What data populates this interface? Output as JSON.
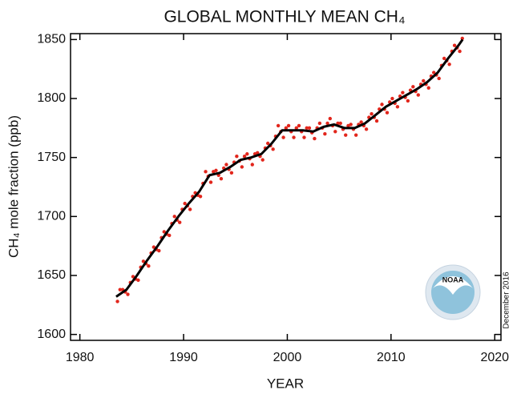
{
  "chart_data": {
    "type": "line",
    "title": "GLOBAL MONTHLY MEAN CH₄",
    "x_label": "YEAR",
    "y_label": "CH₄ mole fraction (ppb)",
    "annotation": "December 2016",
    "logo_text": "NOAA",
    "xlim": [
      1979.1,
      2020.6
    ],
    "xticks": [
      1980,
      1990,
      2000,
      2010,
      2020
    ],
    "ylim": [
      1595,
      1855
    ],
    "yticks": [
      1600,
      1650,
      1700,
      1750,
      1800,
      1850
    ],
    "grid": false,
    "series": [
      {
        "style": "points",
        "color": "#e2261c",
        "x": [
          1983.625,
          1983.875,
          1984.125,
          1984.375,
          1984.625,
          1984.875,
          1985.125,
          1985.375,
          1985.625,
          1985.875,
          1986.125,
          1986.375,
          1986.625,
          1986.875,
          1987.125,
          1987.375,
          1987.625,
          1987.875,
          1988.125,
          1988.375,
          1988.625,
          1988.875,
          1989.125,
          1989.375,
          1989.625,
          1989.875,
          1990.125,
          1990.375,
          1990.625,
          1990.875,
          1991.125,
          1991.375,
          1991.625,
          1991.875,
          1992.125,
          1992.375,
          1992.625,
          1992.875,
          1993.125,
          1993.375,
          1993.625,
          1993.875,
          1994.125,
          1994.375,
          1994.625,
          1994.875,
          1995.125,
          1995.375,
          1995.625,
          1995.875,
          1996.125,
          1996.375,
          1996.625,
          1996.875,
          1997.125,
          1997.375,
          1997.625,
          1997.875,
          1998.125,
          1998.375,
          1998.625,
          1998.875,
          1999.125,
          1999.375,
          1999.625,
          1999.875,
          2000.125,
          2000.375,
          2000.625,
          2000.875,
          2001.125,
          2001.375,
          2001.625,
          2001.875,
          2002.125,
          2002.375,
          2002.625,
          2002.875,
          2003.125,
          2003.375,
          2003.625,
          2003.875,
          2004.125,
          2004.375,
          2004.625,
          2004.875,
          2005.125,
          2005.375,
          2005.625,
          2005.875,
          2006.125,
          2006.375,
          2006.625,
          2006.875,
          2007.125,
          2007.375,
          2007.625,
          2007.875,
          2008.125,
          2008.375,
          2008.625,
          2008.875,
          2009.125,
          2009.375,
          2009.625,
          2009.875,
          2010.125,
          2010.375,
          2010.625,
          2010.875,
          2011.125,
          2011.375,
          2011.625,
          2011.875,
          2012.125,
          2012.375,
          2012.625,
          2012.875,
          2013.125,
          2013.375,
          2013.625,
          2013.875,
          2014.125,
          2014.375,
          2014.625,
          2014.875,
          2015.125,
          2015.375,
          2015.625,
          2015.875,
          2016.125,
          2016.375,
          2016.625,
          2016.875
        ],
        "values": [
          1628,
          1638,
          1638,
          1636,
          1634,
          1644,
          1649,
          1647,
          1646,
          1657,
          1662,
          1660,
          1658,
          1669,
          1674,
          1672,
          1671,
          1682,
          1687,
          1685,
          1684,
          1694,
          1700,
          1697,
          1695,
          1706,
          1711,
          1709,
          1706,
          1717,
          1720,
          1718,
          1717,
          1728,
          1738,
          1734,
          1729,
          1738,
          1739,
          1735,
          1732,
          1741,
          1744,
          1740,
          1737,
          1746,
          1751,
          1747,
          1742,
          1751,
          1753,
          1749,
          1744,
          1753,
          1754,
          1751,
          1748,
          1758,
          1762,
          1760,
          1757,
          1768,
          1777,
          1772,
          1767,
          1775,
          1777,
          1772,
          1767,
          1775,
          1777,
          1772,
          1767,
          1775,
          1775,
          1771,
          1766,
          1775,
          1779,
          1775,
          1770,
          1779,
          1783,
          1777,
          1772,
          1779,
          1779,
          1774,
          1769,
          1777,
          1778,
          1774,
          1769,
          1778,
          1780,
          1777,
          1774,
          1784,
          1787,
          1784,
          1781,
          1791,
          1795,
          1791,
          1788,
          1797,
          1800,
          1796,
          1793,
          1802,
          1805,
          1801,
          1798,
          1807,
          1810,
          1806,
          1803,
          1812,
          1815,
          1812,
          1809,
          1819,
          1822,
          1820,
          1817,
          1828,
          1834,
          1832,
          1829,
          1840,
          1845,
          1843,
          1840,
          1851
        ]
      },
      {
        "style": "line",
        "color": "#000000",
        "x": [
          1983.5,
          1984.5,
          1985.5,
          1986.5,
          1987.5,
          1988.5,
          1989.5,
          1990.5,
          1991.5,
          1992.5,
          1993.5,
          1994.5,
          1995.5,
          1996.5,
          1997.5,
          1998.5,
          1999.5,
          2000.5,
          2001.5,
          2002.5,
          2003.5,
          2004.5,
          2005.5,
          2006.5,
          2007.5,
          2008.5,
          2009.5,
          2010.5,
          2011.5,
          2012.5,
          2013.5,
          2014.5,
          2015.5,
          2016.5,
          2016.9
        ],
        "values": [
          1632,
          1638,
          1650,
          1663,
          1675,
          1688,
          1700,
          1711,
          1721,
          1735,
          1737,
          1742,
          1748,
          1750,
          1753,
          1762,
          1773,
          1773,
          1773,
          1772,
          1776,
          1778,
          1775,
          1775,
          1779,
          1786,
          1793,
          1798,
          1803,
          1808,
          1814,
          1822,
          1834,
          1845,
          1850
        ]
      }
    ]
  }
}
